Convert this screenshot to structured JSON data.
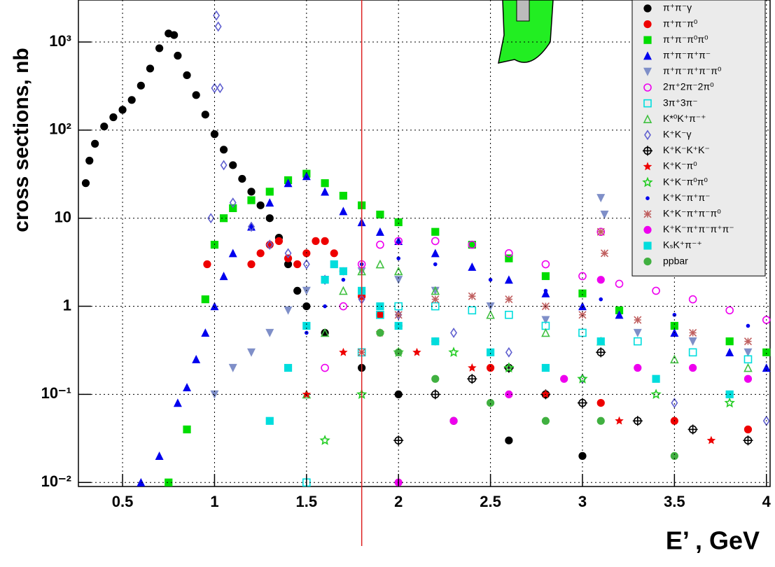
{
  "chart_data": {
    "type": "scatter",
    "y_label": "cross sections, nb",
    "x_label": "E’ , GeV",
    "xlim": [
      0.26,
      4.02
    ],
    "xticks": [
      0.5,
      1,
      1.5,
      2,
      2.5,
      3,
      3.5,
      4
    ],
    "ylim": [
      0.009,
      3000
    ],
    "ylog": true,
    "yticks": [
      {
        "value": 0.01,
        "label": "10⁻²"
      },
      {
        "value": 0.1,
        "label": "10⁻¹"
      },
      1,
      10,
      {
        "value": 100,
        "label": "10²"
      },
      {
        "value": 1000,
        "label": "10³"
      }
    ],
    "grid": true,
    "legend": "upper right",
    "vline": {
      "x": 1.8,
      "color": "#dd2222"
    },
    "series": [
      {
        "name": "π⁺π⁻γ",
        "color": "#000000",
        "marker": "circle",
        "x": [
          0.3,
          0.32,
          0.35,
          0.4,
          0.45,
          0.5,
          0.55,
          0.6,
          0.65,
          0.7,
          0.75,
          0.78,
          0.8,
          0.85,
          0.9,
          0.95,
          1.0,
          1.05,
          1.1,
          1.15,
          1.2,
          1.25,
          1.3,
          1.35,
          1.4,
          1.45,
          1.5,
          1.6,
          1.8,
          2.0,
          2.3,
          2.6,
          3.0
        ],
        "values": [
          25,
          45,
          70,
          110,
          140,
          170,
          220,
          320,
          500,
          850,
          1250,
          1200,
          700,
          420,
          250,
          150,
          90,
          60,
          40,
          28,
          20,
          14,
          10,
          6,
          3,
          1.5,
          1.0,
          0.5,
          0.2,
          0.1,
          0.05,
          0.03,
          0.02
        ]
      },
      {
        "name": "π⁺π⁻π⁰",
        "color": "#ee0000",
        "marker": "circle",
        "x": [
          0.96,
          1.2,
          1.25,
          1.3,
          1.35,
          1.4,
          1.45,
          1.5,
          1.55,
          1.6,
          1.65,
          1.7,
          1.8,
          1.9,
          2.0,
          2.2,
          2.5,
          2.8,
          3.1,
          3.5,
          3.9
        ],
        "values": [
          3,
          3,
          4,
          5,
          5.5,
          3.5,
          3,
          4,
          5.5,
          5.5,
          4,
          2.5,
          1.3,
          0.8,
          0.6,
          0.4,
          0.2,
          0.1,
          0.08,
          0.05,
          0.04
        ]
      },
      {
        "name": "π⁺π⁻π⁰π⁰",
        "color": "#00dd00",
        "marker": "square",
        "x": [
          0.75,
          0.85,
          0.95,
          1.0,
          1.05,
          1.1,
          1.2,
          1.3,
          1.4,
          1.5,
          1.6,
          1.7,
          1.8,
          1.9,
          2.0,
          2.2,
          2.4,
          2.6,
          2.8,
          3.0,
          3.2,
          3.5,
          3.8,
          4.0
        ],
        "values": [
          0.01,
          0.04,
          1.2,
          5,
          10,
          13,
          16,
          20,
          27,
          32,
          25,
          18,
          14,
          11,
          9,
          7,
          5,
          3.5,
          2.2,
          1.4,
          0.9,
          0.6,
          0.4,
          0.3
        ]
      },
      {
        "name": "π⁺π⁻π⁺π⁻",
        "color": "#0000ee",
        "marker": "tri-up",
        "x": [
          0.6,
          0.7,
          0.8,
          0.85,
          0.9,
          0.95,
          1.0,
          1.05,
          1.1,
          1.2,
          1.3,
          1.4,
          1.5,
          1.6,
          1.7,
          1.8,
          1.9,
          2.0,
          2.2,
          2.4,
          2.6,
          2.8,
          3.0,
          3.2,
          3.5,
          3.8,
          4.0
        ],
        "values": [
          0.01,
          0.02,
          0.08,
          0.12,
          0.25,
          0.5,
          1.0,
          2.2,
          4,
          8,
          15,
          25,
          30,
          20,
          12,
          9,
          7,
          5.5,
          4,
          2.8,
          2,
          1.4,
          1.0,
          0.8,
          0.5,
          0.3,
          0.2
        ]
      },
      {
        "name": "π⁺π⁻π⁺π⁻π⁰",
        "color": "#7f8fc8",
        "marker": "tri-down",
        "x": [
          1.0,
          1.1,
          1.2,
          1.3,
          1.4,
          1.5,
          1.6,
          1.7,
          1.8,
          2.0,
          2.2,
          2.5,
          2.8,
          3.1,
          3.12,
          3.3,
          3.6,
          3.9
        ],
        "values": [
          0.1,
          0.2,
          0.3,
          0.5,
          0.9,
          1.5,
          2,
          2.5,
          2.5,
          2.0,
          1.5,
          1.0,
          0.7,
          17,
          11,
          0.5,
          0.4,
          0.3
        ]
      },
      {
        "name": "2π⁺2π⁻2π⁰",
        "color": "#ee00ee",
        "marker": "open-circle",
        "x": [
          1.6,
          1.7,
          1.8,
          1.9,
          2.0,
          2.2,
          2.4,
          2.6,
          2.8,
          3.0,
          3.1,
          3.2,
          3.4,
          3.6,
          3.8,
          4.0
        ],
        "values": [
          0.2,
          1,
          3,
          5,
          5.5,
          5.5,
          5,
          4,
          3,
          2.2,
          7,
          1.8,
          1.5,
          1.2,
          0.9,
          0.7
        ]
      },
      {
        "name": "3π⁺3π⁻",
        "color": "#00dddd",
        "marker": "open-square",
        "x": [
          1.5,
          1.8,
          1.9,
          2.0,
          2.2,
          2.4,
          2.6,
          2.8,
          3.0,
          3.3,
          3.6,
          3.9
        ],
        "values": [
          0.01,
          0.3,
          0.8,
          1.0,
          1.0,
          0.9,
          0.8,
          0.6,
          0.5,
          0.4,
          0.3,
          0.25
        ]
      },
      {
        "name": "K*⁰K⁺π⁻⁺",
        "color": "#40c040",
        "marker": "open-tri",
        "x": [
          1.5,
          1.6,
          1.7,
          1.8,
          1.9,
          2.0,
          2.2,
          2.5,
          2.8,
          3.1,
          3.5,
          3.9
        ],
        "values": [
          0.1,
          0.5,
          1.5,
          2.5,
          3,
          2.5,
          1.5,
          0.8,
          0.5,
          0.4,
          0.25,
          0.2
        ]
      },
      {
        "name": "K⁺K⁻γ",
        "color": "#6060d0",
        "marker": "open-diamond",
        "x": [
          0.98,
          1.0,
          1.01,
          1.02,
          1.03,
          1.05,
          1.1,
          1.2,
          1.3,
          1.4,
          1.5,
          1.6,
          1.8,
          2.0,
          2.3,
          2.6,
          3.0,
          3.5,
          4.0
        ],
        "values": [
          10,
          300,
          2000,
          1500,
          300,
          40,
          15,
          8,
          5,
          4,
          3,
          2,
          1.2,
          0.8,
          0.5,
          0.3,
          0.15,
          0.08,
          0.05
        ]
      },
      {
        "name": "K⁺K⁻K⁺K⁻",
        "color": "#000000",
        "marker": "cross-circle",
        "x": [
          2.0,
          2.2,
          2.4,
          2.6,
          2.8,
          3.0,
          3.1,
          3.3,
          3.6,
          3.9
        ],
        "values": [
          0.03,
          0.1,
          0.15,
          0.2,
          0.1,
          0.08,
          0.3,
          0.05,
          0.04,
          0.03
        ]
      },
      {
        "name": "K⁺K⁻π⁰",
        "color": "#ee0000",
        "marker": "star",
        "x": [
          1.5,
          1.7,
          1.9,
          2.1,
          2.4,
          2.8,
          3.2,
          3.7
        ],
        "values": [
          0.1,
          0.3,
          0.5,
          0.3,
          0.2,
          0.1,
          0.05,
          0.03
        ]
      },
      {
        "name": "K⁺K⁻π⁰π⁰",
        "color": "#22cc22",
        "marker": "open-star",
        "x": [
          1.6,
          1.8,
          2.0,
          2.3,
          2.6,
          3.0,
          3.4,
          3.8
        ],
        "values": [
          0.03,
          0.1,
          0.3,
          0.3,
          0.2,
          0.15,
          0.1,
          0.08
        ]
      },
      {
        "name": "K⁺K⁻π⁺π⁻",
        "color": "#0000ee",
        "marker": "dot",
        "x": [
          1.5,
          1.6,
          1.7,
          1.8,
          2.0,
          2.2,
          2.5,
          2.8,
          3.1,
          3.5,
          3.9
        ],
        "values": [
          0.5,
          1,
          2,
          3,
          3.5,
          3,
          2,
          1.5,
          1.2,
          0.8,
          0.6
        ]
      },
      {
        "name": "K⁺K⁻π⁺π⁻π⁰",
        "color": "#c06060",
        "marker": "asterisk",
        "x": [
          1.8,
          2.0,
          2.2,
          2.4,
          2.6,
          2.8,
          3.0,
          3.1,
          3.12,
          3.3,
          3.6,
          3.9
        ],
        "values": [
          0.3,
          0.8,
          1.2,
          1.3,
          1.2,
          1.0,
          0.8,
          7,
          4,
          0.7,
          0.5,
          0.4
        ]
      },
      {
        "name": "K⁺K⁻π⁺π⁻π⁺π⁻",
        "color": "#ee00ee",
        "marker": "circle",
        "x": [
          2.0,
          2.3,
          2.6,
          2.9,
          3.1,
          3.3,
          3.6,
          3.9
        ],
        "values": [
          0.01,
          0.05,
          0.1,
          0.15,
          2,
          0.2,
          0.2,
          0.15
        ]
      },
      {
        "name": "KₛK⁺π⁻⁺",
        "color": "#00dddd",
        "marker": "square",
        "x": [
          1.3,
          1.4,
          1.5,
          1.6,
          1.65,
          1.7,
          1.8,
          1.9,
          2.0,
          2.2,
          2.5,
          2.8,
          3.1,
          3.4,
          3.8
        ],
        "values": [
          0.05,
          0.2,
          0.6,
          2,
          3,
          2.5,
          1.5,
          1.0,
          0.6,
          0.4,
          0.3,
          0.2,
          0.4,
          0.15,
          0.1
        ]
      },
      {
        "name": "ppbar",
        "color": "#40b040",
        "marker": "circle",
        "x": [
          1.9,
          2.0,
          2.2,
          2.5,
          2.8,
          3.1,
          3.5
        ],
        "values": [
          0.5,
          0.3,
          0.15,
          0.08,
          0.05,
          0.05,
          0.02
        ]
      }
    ]
  }
}
